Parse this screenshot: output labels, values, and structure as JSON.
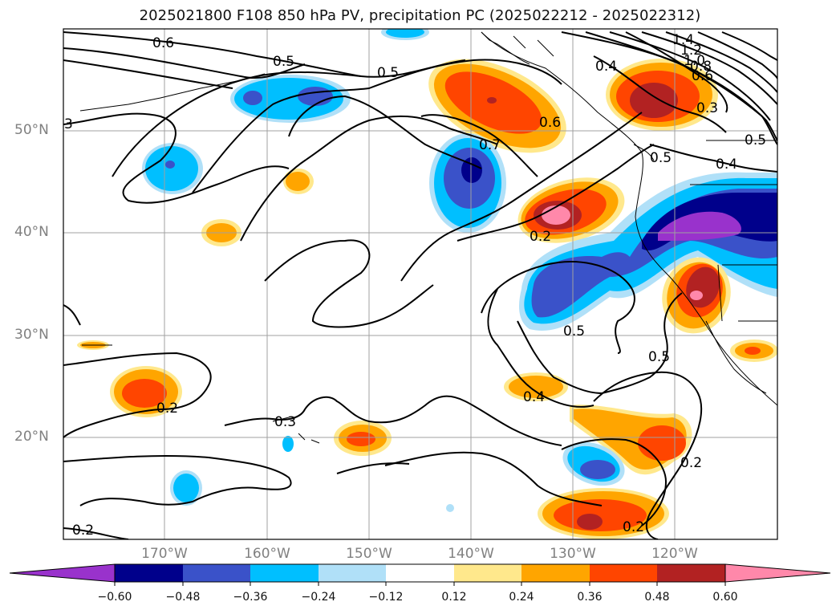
{
  "title": "2025021800 F108 850 hPa PV, precipitation PC (2025022212 - 2025022312)",
  "map": {
    "lat_labels": [
      "50°N",
      "40°N",
      "30°N",
      "20°N"
    ],
    "lon_labels": [
      "170°W",
      "160°W",
      "150°W",
      "140°W",
      "130°W",
      "120°W"
    ],
    "contour_labels": [
      "0.6",
      "0.5",
      "0.5",
      "0.6",
      "0.7",
      "0.4",
      "0.5",
      "1.4",
      "1.2",
      "1.0",
      "0.8",
      "0.6",
      "0.3",
      "0.5",
      "0.4",
      "0.5",
      "0.5",
      "0.4",
      "0.2",
      "0.3",
      "0.2",
      "0.2",
      "0.2",
      "3",
      "0.2"
    ],
    "colors": {
      "coast": "#000000",
      "grid": "#a0a0a0"
    }
  },
  "colorbar": {
    "ticks": [
      "−0.60",
      "−0.48",
      "−0.36",
      "−0.24",
      "−0.12",
      "0.12",
      "0.24",
      "0.36",
      "0.48",
      "0.60"
    ],
    "colors": [
      "#9932cc",
      "#00008b",
      "#3a52c9",
      "#00bfff",
      "#b0e0f8",
      "#ffffff",
      "#ffe88c",
      "#ffa500",
      "#ff4500",
      "#b22222",
      "#ff88aa"
    ]
  }
}
